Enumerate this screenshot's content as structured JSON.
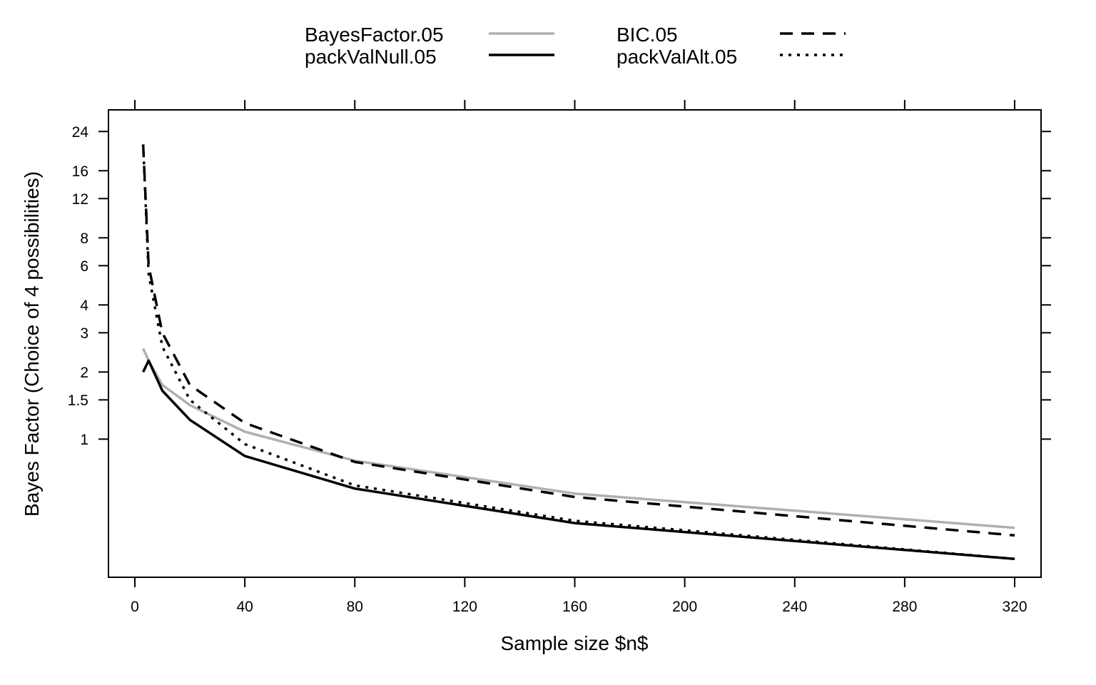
{
  "chart_data": {
    "type": "line",
    "title": "",
    "xlabel": "Sample size $n$",
    "ylabel": "Bayes Factor (Choice of 4 possibilities)",
    "xlim": [
      -9.6,
      329.6
    ],
    "ylim": [
      0.24,
      30
    ],
    "y_scale": "log",
    "x_ticks": [
      0,
      40,
      80,
      120,
      160,
      200,
      240,
      280,
      320
    ],
    "y_ticks": [
      1,
      1.5,
      2,
      3,
      4,
      6,
      8,
      12,
      16,
      24
    ],
    "grid": false,
    "legend_position": "top",
    "colors": {
      "gray": "#b0b0b0",
      "black": "#000000"
    },
    "series": [
      {
        "name": "BayesFactor.05",
        "color": "#b0b0b0",
        "dash": "solid",
        "x": [
          3,
          5,
          10,
          20,
          40,
          80,
          160,
          320
        ],
        "y": [
          2.55,
          2.25,
          1.75,
          1.42,
          1.08,
          0.8,
          0.57,
          0.4
        ]
      },
      {
        "name": "BIC.05",
        "color": "#000000",
        "dash": "dashed",
        "x": [
          3,
          5,
          10,
          20,
          40,
          80,
          160,
          320
        ],
        "y": [
          21,
          6.0,
          3.0,
          1.75,
          1.18,
          0.79,
          0.55,
          0.37
        ]
      },
      {
        "name": "packValNull.05",
        "color": "#000000",
        "dash": "solid",
        "x": [
          3,
          5,
          10,
          20,
          40,
          80,
          160,
          320
        ],
        "y": [
          2.0,
          2.25,
          1.65,
          1.22,
          0.84,
          0.6,
          0.42,
          0.29
        ]
      },
      {
        "name": "packValAlt.05",
        "color": "#000000",
        "dash": "dotted",
        "x": [
          3,
          5,
          10,
          20,
          40,
          80,
          160,
          320
        ],
        "y": [
          21,
          5.5,
          2.6,
          1.5,
          0.95,
          0.62,
          0.43,
          0.29
        ]
      }
    ]
  }
}
